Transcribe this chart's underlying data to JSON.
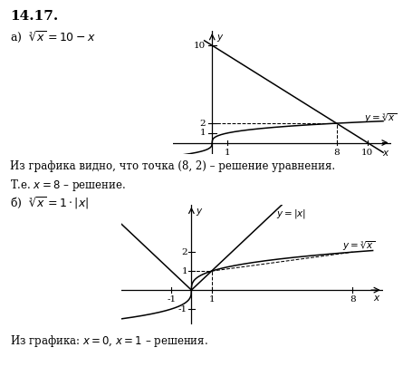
{
  "title_number": "14.17.",
  "part_a_label": "а)",
  "part_a_equation": "$\\sqrt[3]{x} = 10 - x$",
  "part_b_label": "б)",
  "part_b_equation": "$\\sqrt[3]{x} = 1 \\cdot |x|$",
  "text_a": "Из графика видно, что точка (8, 2) – решение уравнения.",
  "text_a2": "Т.е. $x = 8$ – решение.",
  "text_b": "Из графика: $x = 0$, $x = 1$ – решения.",
  "background_color": "#ffffff"
}
